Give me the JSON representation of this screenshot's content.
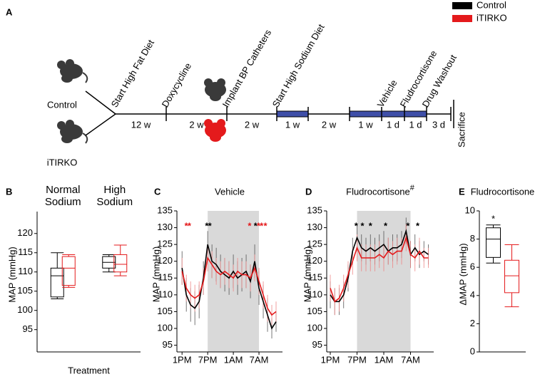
{
  "panel_a": {
    "label": "A",
    "legend": [
      {
        "name": "Control",
        "color": "#000000"
      },
      {
        "name": "iTIRKO",
        "color": "#e41a1c"
      }
    ],
    "groups": [
      "Control",
      "iTIRKO"
    ],
    "events": [
      "Start High Fat Diet",
      "Doxycycline",
      "Implant BP Catheters",
      "Start High Sodium Diet",
      "Vehicle",
      "Fludrocortisone",
      "Drug Washout"
    ],
    "end_event": "Sacrifice",
    "intervals": [
      "12 w",
      "2 w",
      "2 w",
      "1 w",
      "2 w",
      "1 w",
      "1 d",
      "1 d",
      "3 d"
    ]
  },
  "chart_data": [
    {
      "type": "box",
      "panel": "B",
      "ylabel": "MAP (mmHg)",
      "xlabel": "Treatment",
      "categories": [
        "Normal Sodium",
        "High Sodium"
      ],
      "ylim": [
        89.2,
        125.7
      ],
      "yticks": [
        95,
        100,
        105,
        110,
        115,
        120
      ],
      "series": [
        {
          "color": "#000000",
          "boxes": [
            {
              "min": 103,
              "q1": 103.5,
              "median": 109,
              "q3": 111,
              "max": 115
            },
            {
              "min": 110,
              "q1": 111,
              "median": 112.5,
              "q3": 114,
              "max": 114.5
            }
          ]
        },
        {
          "color": "#e41a1c",
          "boxes": [
            {
              "min": 106,
              "q1": 106.5,
              "median": 111,
              "q3": 114,
              "max": 114.5
            },
            {
              "min": 109,
              "q1": 110,
              "median": 112,
              "q3": 114.5,
              "max": 117
            }
          ]
        }
      ]
    },
    {
      "type": "line",
      "panel": "C",
      "title": "Vehicle",
      "ylabel": "MAP (mmHg)",
      "x": [
        0,
        1,
        2,
        3,
        4,
        5,
        6,
        7,
        8,
        9,
        10,
        11,
        12,
        13,
        14,
        15,
        16,
        17,
        18,
        19,
        20,
        21,
        22
      ],
      "xlim": [
        -1.2,
        23.5
      ],
      "xticks": [
        {
          "value": 0,
          "label": "1PM"
        },
        {
          "value": 6,
          "label": "7PM"
        },
        {
          "value": 12,
          "label": "1AM"
        },
        {
          "value": 18,
          "label": "7AM"
        }
      ],
      "ylim": [
        93,
        135
      ],
      "yticks": [
        95,
        100,
        105,
        110,
        115,
        120,
        125,
        130,
        135
      ],
      "shade": [
        6,
        18
      ],
      "series": [
        {
          "color": "#000000",
          "values": [
            118,
            110,
            107,
            106,
            108,
            115,
            125,
            120,
            119,
            117,
            116,
            115,
            117,
            115,
            116,
            117,
            114,
            120,
            112,
            108,
            104,
            100,
            102
          ],
          "errors": [
            5,
            5,
            5,
            5,
            5,
            5,
            4,
            5,
            5,
            5,
            5,
            5,
            5,
            5,
            5,
            5,
            5,
            5,
            5,
            5,
            5,
            3,
            3
          ]
        },
        {
          "color": "#e41a1c",
          "values": [
            117,
            112,
            110,
            109,
            110,
            114,
            121,
            119,
            117,
            116,
            117,
            116,
            115,
            117,
            116,
            116,
            115,
            118,
            114,
            110,
            106,
            104,
            105
          ],
          "errors": [
            4,
            4,
            4,
            4,
            4,
            4,
            4,
            4,
            4,
            4,
            4,
            4,
            4,
            4,
            4,
            4,
            4,
            4,
            4,
            4,
            4,
            3,
            3
          ]
        }
      ],
      "annotations": [
        {
          "x": 1,
          "y": 131,
          "text": "*",
          "color": "#e41a1c"
        },
        {
          "x": 1.7,
          "y": 131,
          "text": "*",
          "color": "#e41a1c"
        },
        {
          "x": 5.8,
          "y": 131,
          "text": "*",
          "color": "#000000"
        },
        {
          "x": 6.5,
          "y": 131,
          "text": "*",
          "color": "#000000"
        },
        {
          "x": 15.8,
          "y": 131,
          "text": "*",
          "color": "#e41a1c"
        },
        {
          "x": 17.2,
          "y": 131,
          "text": "*",
          "color": "#000000"
        },
        {
          "x": 17.9,
          "y": 131,
          "text": "*",
          "color": "#e41a1c"
        },
        {
          "x": 18.6,
          "y": 131,
          "text": "*",
          "color": "#e41a1c"
        },
        {
          "x": 19.5,
          "y": 131,
          "text": "*",
          "color": "#e41a1c"
        }
      ]
    },
    {
      "type": "line",
      "panel": "D",
      "title": "Fludrocortisone",
      "title_superscript": "#",
      "ylabel": "MAP (mmHg)",
      "x": [
        0,
        1,
        2,
        3,
        4,
        5,
        6,
        7,
        8,
        9,
        10,
        11,
        12,
        13,
        14,
        15,
        16,
        17,
        18,
        19,
        20,
        21,
        22
      ],
      "xlim": [
        -0.8,
        23.2
      ],
      "xticks": [
        {
          "value": 0,
          "label": "1PM"
        },
        {
          "value": 6,
          "label": "7PM"
        },
        {
          "value": 12,
          "label": "1AM"
        },
        {
          "value": 18,
          "label": "7AM"
        }
      ],
      "ylim": [
        93,
        135
      ],
      "yticks": [
        95,
        100,
        105,
        110,
        115,
        120,
        125,
        130,
        135
      ],
      "shade": [
        6,
        18
      ],
      "series": [
        {
          "color": "#000000",
          "values": [
            110,
            108,
            108,
            110,
            115,
            123,
            127,
            124,
            123,
            124,
            123,
            124,
            125,
            123,
            124,
            124,
            125,
            129,
            122,
            124,
            122,
            123,
            122
          ],
          "errors": [
            4,
            4,
            4,
            4,
            4,
            4,
            4,
            4,
            4,
            4,
            4,
            4,
            4,
            4,
            4,
            4,
            4,
            4,
            4,
            4,
            4,
            3,
            3
          ]
        },
        {
          "color": "#e41a1c",
          "values": [
            112,
            108,
            109,
            112,
            116,
            120,
            124,
            121,
            121,
            121,
            121,
            122,
            121,
            123,
            122,
            123,
            123,
            127,
            122,
            121,
            123,
            121,
            121
          ],
          "errors": [
            4,
            4,
            4,
            4,
            4,
            4,
            4,
            4,
            4,
            4,
            4,
            4,
            4,
            4,
            4,
            4,
            4,
            4,
            4,
            4,
            4,
            3,
            3
          ]
        }
      ],
      "annotations": [
        {
          "x": 5.8,
          "y": 131,
          "text": "*",
          "color": "#000000"
        },
        {
          "x": 7.2,
          "y": 131,
          "text": "*",
          "color": "#000000"
        },
        {
          "x": 9,
          "y": 131,
          "text": "*",
          "color": "#000000"
        },
        {
          "x": 12.4,
          "y": 131,
          "text": "*",
          "color": "#000000"
        },
        {
          "x": 17.4,
          "y": 131,
          "text": "*",
          "color": "#000000"
        },
        {
          "x": 19.6,
          "y": 131,
          "text": "*",
          "color": "#000000"
        }
      ]
    },
    {
      "type": "box",
      "panel": "E",
      "title": "Fludrocortisone",
      "ylabel": "ΔMAP (mmHg)",
      "categories": [
        null
      ],
      "ylim": [
        0,
        10
      ],
      "yticks": [
        0,
        2,
        4,
        6,
        8,
        10
      ],
      "series": [
        {
          "color": "#000000",
          "boxes": [
            {
              "min": 6.3,
              "q1": 6.7,
              "median": 8,
              "q3": 8.8,
              "max": 9
            }
          ]
        },
        {
          "color": "#e41a1c",
          "boxes": [
            {
              "min": 3.2,
              "q1": 4.2,
              "median": 5.4,
              "q3": 6.5,
              "max": 7.6
            }
          ]
        }
      ],
      "annotations": [
        {
          "x": 0,
          "y": 9.4,
          "text": "*",
          "color": "#000000"
        }
      ]
    }
  ]
}
